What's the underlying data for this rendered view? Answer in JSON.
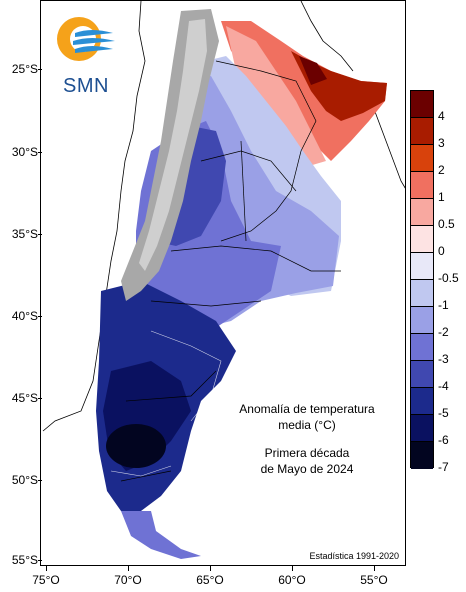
{
  "logo": {
    "text": "SMN"
  },
  "map": {
    "title_lines": [
      "Anomalía de temperatura",
      "media (°C)"
    ],
    "period_lines": [
      "Primera década",
      "de Mayo de 2024"
    ],
    "footer": "Estadística 1991-2020",
    "lat_labels": [
      "25°S",
      "30°S",
      "35°S",
      "40°S",
      "45°S",
      "50°S",
      "55°S"
    ],
    "lon_labels": [
      "75°O",
      "70°O",
      "65°O",
      "60°O",
      "55°O"
    ]
  },
  "legend": {
    "labels": [
      "4",
      "3",
      "2",
      "1",
      "0.5",
      "0",
      "-0.5",
      "-1",
      "-2",
      "-3",
      "-4",
      "-5",
      "-6",
      "-7"
    ],
    "colors": [
      "#6b0000",
      "#a81c00",
      "#d8420c",
      "#f07060",
      "#f8a8a0",
      "#fde3e3",
      "#e8e8f8",
      "#c0c8f0",
      "#9aa0e6",
      "#6f72d4",
      "#4048b0",
      "#1c2a8c",
      "#0a1160",
      "#020520"
    ]
  }
}
